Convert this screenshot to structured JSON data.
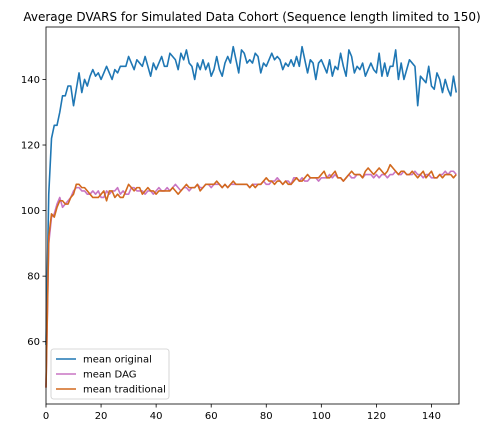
{
  "chart_data": {
    "type": "line",
    "title": "Average DVARS for Simulated Data Cohort (Sequence length limited to 150)",
    "xlabel": "",
    "ylabel": "",
    "xlim": [
      0,
      150
    ],
    "ylim": [
      41,
      156
    ],
    "xticks": [
      0,
      20,
      40,
      60,
      80,
      100,
      120,
      140
    ],
    "yticks": [
      60,
      80,
      100,
      120,
      140
    ],
    "grid": false,
    "legend_position": "lower-left",
    "series": [
      {
        "name": "mean original",
        "color": "#1f77b4",
        "x": [
          0,
          1,
          2,
          3,
          4,
          5,
          6,
          7,
          8,
          9,
          10,
          11,
          12,
          13,
          14,
          15,
          16,
          17,
          18,
          19,
          20,
          21,
          22,
          23,
          24,
          25,
          26,
          27,
          28,
          29,
          30,
          31,
          32,
          33,
          34,
          35,
          36,
          37,
          38,
          39,
          40,
          41,
          42,
          43,
          44,
          45,
          46,
          47,
          48,
          49,
          50,
          51,
          52,
          53,
          54,
          55,
          56,
          57,
          58,
          59,
          60,
          61,
          62,
          63,
          64,
          65,
          66,
          67,
          68,
          69,
          70,
          71,
          72,
          73,
          74,
          75,
          76,
          77,
          78,
          79,
          80,
          81,
          82,
          83,
          84,
          85,
          86,
          87,
          88,
          89,
          90,
          91,
          92,
          93,
          94,
          95,
          96,
          97,
          98,
          99,
          100,
          101,
          102,
          103,
          104,
          105,
          106,
          107,
          108,
          109,
          110,
          111,
          112,
          113,
          114,
          115,
          116,
          117,
          118,
          119,
          120,
          121,
          122,
          123,
          124,
          125,
          126,
          127,
          128,
          129,
          130,
          131,
          132,
          133,
          134,
          135,
          136,
          137,
          138,
          139,
          140,
          141,
          142,
          143,
          144,
          145,
          146,
          147,
          148,
          149
        ],
        "values": [
          59,
          105,
          122,
          126,
          126,
          130,
          135,
          135,
          138,
          138,
          132,
          137,
          142,
          136,
          140,
          138,
          141,
          143,
          141,
          142,
          140,
          142,
          144,
          142,
          140,
          143,
          142,
          144,
          144,
          144,
          147,
          145,
          143,
          146,
          145,
          144,
          147,
          144,
          141,
          145,
          143,
          145,
          147,
          144,
          144,
          148,
          147,
          146,
          143,
          148,
          146,
          149,
          145,
          144,
          140,
          145,
          143,
          146,
          143,
          145,
          141,
          143,
          147,
          143,
          141,
          145,
          147,
          145,
          150,
          146,
          142,
          149,
          148,
          145,
          146,
          145,
          148,
          147,
          142,
          145,
          144,
          146,
          148,
          146,
          147,
          146,
          143,
          145,
          144,
          146,
          144,
          147,
          144,
          150,
          146,
          142,
          146,
          145,
          140,
          145,
          146,
          144,
          142,
          146,
          141,
          144,
          143,
          148,
          144,
          141,
          149,
          147,
          142,
          144,
          143,
          145,
          141,
          143,
          145,
          143,
          142,
          148,
          141,
          145,
          141,
          144,
          144,
          149,
          140,
          145,
          140,
          143,
          146,
          145,
          144,
          132,
          141,
          140,
          139,
          144,
          138,
          137,
          142,
          140,
          136,
          140,
          137,
          135,
          141,
          136
        ]
      },
      {
        "name": "mean DAG",
        "color": "#c875c4",
        "x": [
          0,
          1,
          2,
          3,
          4,
          5,
          6,
          7,
          8,
          9,
          10,
          11,
          12,
          13,
          14,
          15,
          16,
          17,
          18,
          19,
          20,
          21,
          22,
          23,
          24,
          25,
          26,
          27,
          28,
          29,
          30,
          31,
          32,
          33,
          34,
          35,
          36,
          37,
          38,
          39,
          40,
          41,
          42,
          43,
          44,
          45,
          46,
          47,
          48,
          49,
          50,
          51,
          52,
          53,
          54,
          55,
          56,
          57,
          58,
          59,
          60,
          61,
          62,
          63,
          64,
          65,
          66,
          67,
          68,
          69,
          70,
          71,
          72,
          73,
          74,
          75,
          76,
          77,
          78,
          79,
          80,
          81,
          82,
          83,
          84,
          85,
          86,
          87,
          88,
          89,
          90,
          91,
          92,
          93,
          94,
          95,
          96,
          97,
          98,
          99,
          100,
          101,
          102,
          103,
          104,
          105,
          106,
          107,
          108,
          109,
          110,
          111,
          112,
          113,
          114,
          115,
          116,
          117,
          118,
          119,
          120,
          121,
          122,
          123,
          124,
          125,
          126,
          127,
          128,
          129,
          130,
          131,
          132,
          133,
          134,
          135,
          136,
          137,
          138,
          139,
          140,
          141,
          142,
          143,
          144,
          145,
          146,
          147,
          148,
          149
        ],
        "values": [
          46,
          90,
          98,
          99,
          102,
          104,
          101,
          102,
          103,
          104,
          106,
          107,
          107,
          106,
          106,
          105,
          105,
          106,
          105,
          106,
          104,
          104,
          106,
          105,
          106,
          106,
          107,
          105,
          106,
          105,
          105,
          107,
          107,
          106,
          106,
          106,
          105,
          106,
          106,
          105,
          106,
          107,
          106,
          106,
          107,
          106,
          107,
          108,
          107,
          106,
          107,
          107,
          106,
          107,
          107,
          108,
          107,
          107,
          108,
          108,
          107,
          108,
          108,
          108,
          107,
          108,
          107,
          108,
          108,
          108,
          108,
          108,
          108,
          108,
          107,
          108,
          108,
          108,
          108,
          109,
          108,
          108,
          109,
          109,
          110,
          109,
          108,
          109,
          109,
          108,
          110,
          110,
          109,
          110,
          109,
          109,
          110,
          110,
          110,
          109,
          110,
          110,
          110,
          111,
          110,
          111,
          110,
          110,
          109,
          110,
          111,
          110,
          110,
          111,
          111,
          110,
          111,
          111,
          111,
          110,
          111,
          110,
          111,
          111,
          110,
          111,
          111,
          112,
          111,
          111,
          112,
          111,
          111,
          111,
          112,
          111,
          111,
          110,
          111,
          111,
          110,
          110,
          110,
          111,
          111,
          112,
          111,
          112,
          112,
          111
        ]
      },
      {
        "name": "mean traditional",
        "color": "#d2691e",
        "x": [
          0,
          1,
          2,
          3,
          4,
          5,
          6,
          7,
          8,
          9,
          10,
          11,
          12,
          13,
          14,
          15,
          16,
          17,
          18,
          19,
          20,
          21,
          22,
          23,
          24,
          25,
          26,
          27,
          28,
          29,
          30,
          31,
          32,
          33,
          34,
          35,
          36,
          37,
          38,
          39,
          40,
          41,
          42,
          43,
          44,
          45,
          46,
          47,
          48,
          49,
          50,
          51,
          52,
          53,
          54,
          55,
          56,
          57,
          58,
          59,
          60,
          61,
          62,
          63,
          64,
          65,
          66,
          67,
          68,
          69,
          70,
          71,
          72,
          73,
          74,
          75,
          76,
          77,
          78,
          79,
          80,
          81,
          82,
          83,
          84,
          85,
          86,
          87,
          88,
          89,
          90,
          91,
          92,
          93,
          94,
          95,
          96,
          97,
          98,
          99,
          100,
          101,
          102,
          103,
          104,
          105,
          106,
          107,
          108,
          109,
          110,
          111,
          112,
          113,
          114,
          115,
          116,
          117,
          118,
          119,
          120,
          121,
          122,
          123,
          124,
          125,
          126,
          127,
          128,
          129,
          130,
          131,
          132,
          133,
          134,
          135,
          136,
          137,
          138,
          139,
          140,
          141,
          142,
          143,
          144,
          145,
          146,
          147,
          148,
          149
        ],
        "values": [
          46,
          92,
          99,
          98,
          101,
          103,
          103,
          102,
          102,
          104,
          105,
          108,
          108,
          107,
          107,
          106,
          105,
          104,
          104,
          104,
          105,
          106,
          103,
          106,
          106,
          104,
          105,
          104,
          104,
          106,
          108,
          107,
          106,
          107,
          107,
          105,
          106,
          107,
          106,
          106,
          105,
          106,
          106,
          106,
          106,
          106,
          107,
          106,
          105,
          106,
          107,
          108,
          107,
          107,
          107,
          108,
          106,
          107,
          108,
          108,
          108,
          108,
          109,
          108,
          107,
          108,
          107,
          108,
          109,
          108,
          108,
          108,
          108,
          108,
          107,
          108,
          107,
          108,
          108,
          109,
          110,
          109,
          109,
          108,
          109,
          109,
          108,
          109,
          108,
          108,
          109,
          110,
          109,
          109,
          110,
          111,
          110,
          110,
          110,
          110,
          111,
          112,
          110,
          110,
          111,
          112,
          110,
          110,
          109,
          110,
          111,
          112,
          111,
          111,
          111,
          110,
          112,
          113,
          112,
          111,
          112,
          113,
          112,
          111,
          112,
          114,
          113,
          112,
          111,
          112,
          112,
          111,
          111,
          112,
          111,
          110,
          111,
          112,
          110,
          111,
          112,
          110,
          110,
          111,
          110,
          111,
          111,
          111,
          110,
          111
        ]
      }
    ]
  }
}
